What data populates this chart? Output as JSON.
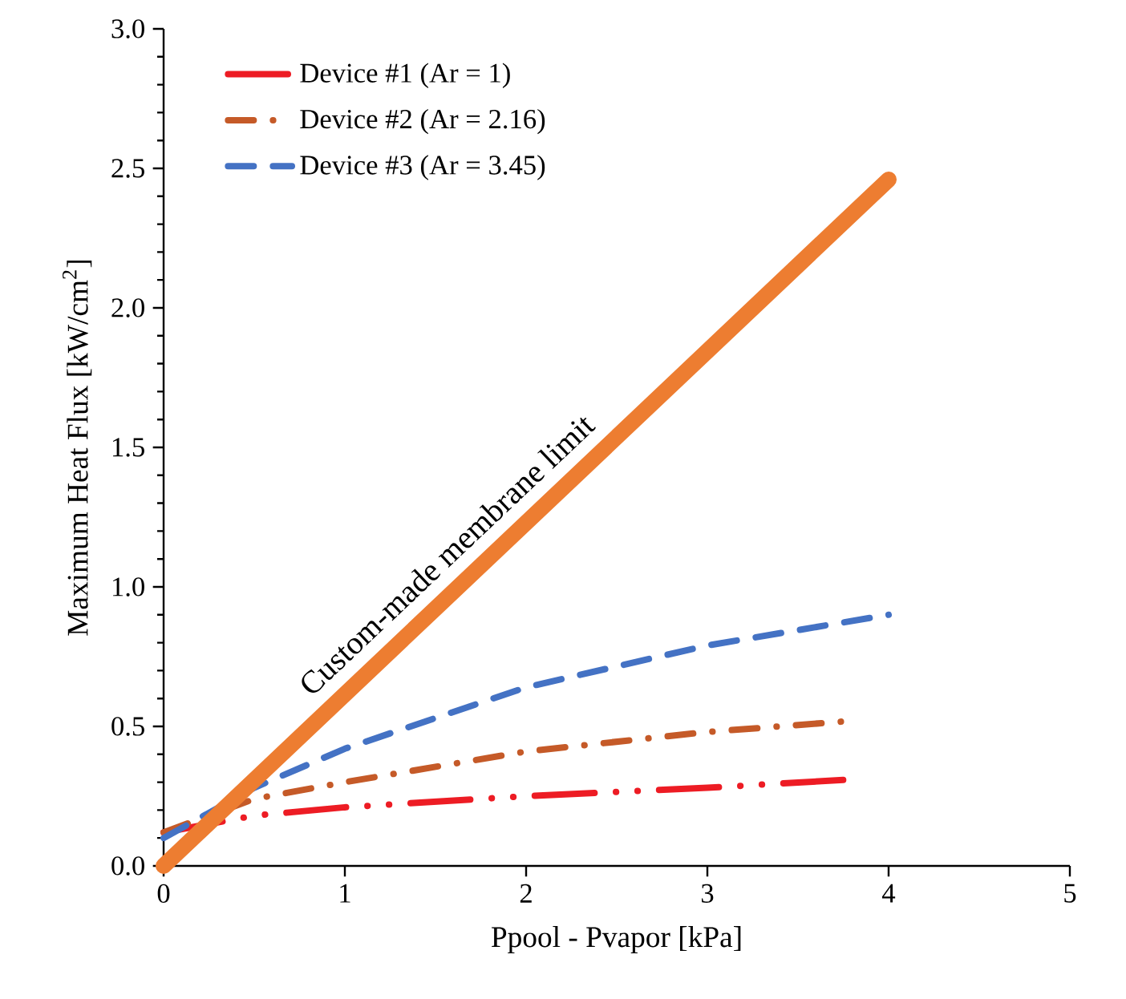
{
  "chart_data": {
    "type": "line",
    "xlabel": "Ppool - Pvapor [kPa]",
    "ylabel": "Maximum Heat Flux [kW/cm$^{2}$]",
    "xlim": [
      0,
      5
    ],
    "ylim": [
      0,
      3
    ],
    "xticks": [
      0,
      1,
      2,
      3,
      4,
      5
    ],
    "yticks": [
      {
        "value": 0,
        "label": "0.0"
      },
      {
        "value": 0.5,
        "label": "0.5"
      },
      {
        "value": 1,
        "label": "1.0"
      },
      {
        "value": 1.5,
        "label": "1.5"
      },
      {
        "value": 2,
        "label": "2.0"
      },
      {
        "value": 2.5,
        "label": "2.5"
      },
      {
        "value": 3,
        "label": "3.0"
      }
    ],
    "legend": "top left",
    "grid": false,
    "marker": "none",
    "series": [
      {
        "name": "Device #1 (Ar = 1)",
        "color": "#ed1c24",
        "line_style": "dashdotdot",
        "x": [
          0,
          0.5,
          1,
          2,
          3,
          3.8
        ],
        "values": [
          0.12,
          0.18,
          0.21,
          0.25,
          0.28,
          0.31
        ]
      },
      {
        "name": "Device #2 (Ar = 2.16)",
        "color": "#c55a28",
        "line_style": "dashdot",
        "x": [
          0,
          0.5,
          1,
          2,
          3,
          3.8
        ],
        "values": [
          0.12,
          0.24,
          0.3,
          0.41,
          0.48,
          0.52
        ]
      },
      {
        "name": "Device #3 (Ar = 3.45)",
        "color": "#4472c4",
        "line_style": "dashed",
        "x": [
          0,
          0.5,
          1,
          2,
          3,
          4
        ],
        "values": [
          0.1,
          0.28,
          0.42,
          0.64,
          0.79,
          0.9
        ]
      },
      {
        "color": "#ed7d31",
        "line_style": "solid",
        "x": [
          0,
          4
        ],
        "values": [
          0,
          2.46
        ]
      }
    ],
    "annotations": [
      "Custom-made membrane limit"
    ]
  }
}
